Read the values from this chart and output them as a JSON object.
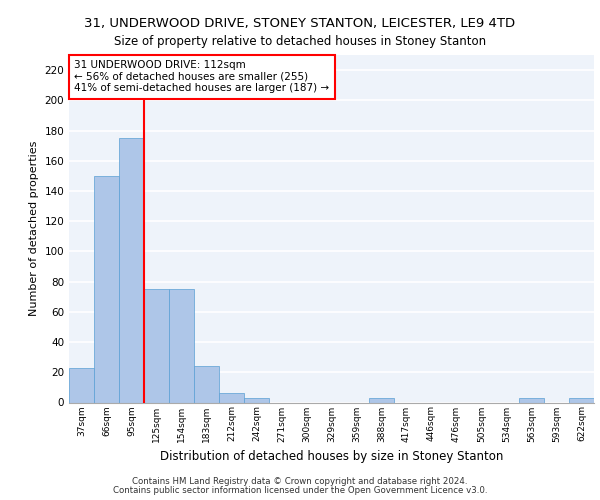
{
  "title1": "31, UNDERWOOD DRIVE, STONEY STANTON, LEICESTER, LE9 4TD",
  "title2": "Size of property relative to detached houses in Stoney Stanton",
  "xlabel": "Distribution of detached houses by size in Stoney Stanton",
  "ylabel": "Number of detached properties",
  "categories": [
    "37sqm",
    "66sqm",
    "95sqm",
    "125sqm",
    "154sqm",
    "183sqm",
    "212sqm",
    "242sqm",
    "271sqm",
    "300sqm",
    "329sqm",
    "359sqm",
    "388sqm",
    "417sqm",
    "446sqm",
    "476sqm",
    "505sqm",
    "534sqm",
    "563sqm",
    "593sqm",
    "622sqm"
  ],
  "values": [
    23,
    150,
    175,
    75,
    75,
    24,
    6,
    3,
    0,
    0,
    0,
    0,
    3,
    0,
    0,
    0,
    0,
    0,
    3,
    0,
    3
  ],
  "bar_color": "#aec6e8",
  "bar_edge_color": "#5a9fd4",
  "annotation_line1": "31 UNDERWOOD DRIVE: 112sqm",
  "annotation_line2": "← 56% of detached houses are smaller (255)",
  "annotation_line3": "41% of semi-detached houses are larger (187) →",
  "red_line_x": 2.5,
  "ylim": [
    0,
    230
  ],
  "yticks": [
    0,
    20,
    40,
    60,
    80,
    100,
    120,
    140,
    160,
    180,
    200,
    220
  ],
  "background_color": "#eef3fa",
  "grid_color": "#ffffff",
  "footer1": "Contains HM Land Registry data © Crown copyright and database right 2024.",
  "footer2": "Contains public sector information licensed under the Open Government Licence v3.0."
}
